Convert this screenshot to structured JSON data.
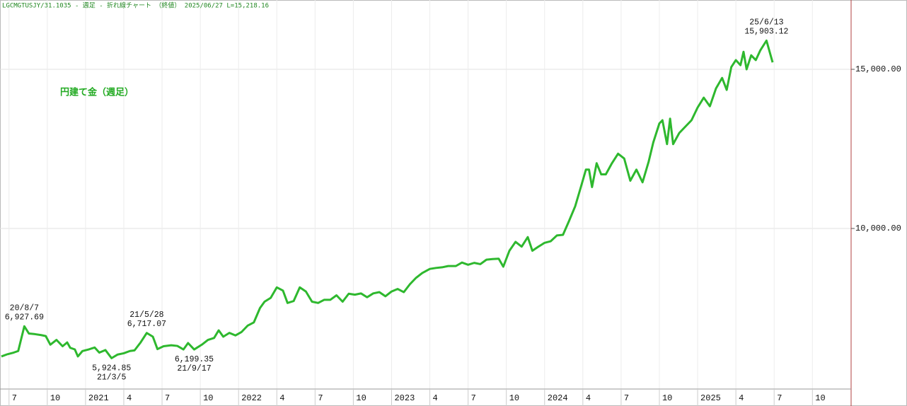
{
  "chart_data": {
    "type": "line",
    "title": "LGCMGTUSJY/31.1035 - 週足 - 折れ線チャート （終値） 2025/06/27 L=15,218.16",
    "xlim": [
      2020.441,
      2026.003
    ],
    "xticks": [
      {
        "value": 2020.5,
        "label": "7"
      },
      {
        "value": 2020.75,
        "label": "10"
      },
      2021,
      {
        "value": 2021.25,
        "label": "4"
      },
      {
        "value": 2021.5,
        "label": "7"
      },
      {
        "value": 2021.75,
        "label": "10"
      },
      2022,
      {
        "value": 2022.25,
        "label": "4"
      },
      {
        "value": 2022.5,
        "label": "7"
      },
      {
        "value": 2022.75,
        "label": "10"
      },
      2023,
      {
        "value": 2023.25,
        "label": "4"
      },
      {
        "value": 2023.5,
        "label": "7"
      },
      {
        "value": 2023.75,
        "label": "10"
      },
      2024,
      {
        "value": 2024.25,
        "label": "4"
      },
      {
        "value": 2024.5,
        "label": "7"
      },
      {
        "value": 2024.75,
        "label": "10"
      },
      2025,
      {
        "value": 2025.25,
        "label": "4"
      },
      {
        "value": 2025.5,
        "label": "7"
      },
      {
        "value": 2025.75,
        "label": "10"
      }
    ],
    "ylim": [
      4956,
      17178
    ],
    "yticks": [
      {
        "value": 10000,
        "label": "10,000.00"
      },
      {
        "value": 15000,
        "label": "15,000.00"
      }
    ],
    "grid": true,
    "x": [
      2020.45,
      2020.49,
      2020.53,
      2020.56,
      2020.6,
      2020.63,
      2020.67,
      2020.71,
      2020.74,
      2020.77,
      2020.81,
      2020.85,
      2020.88,
      2020.9,
      2020.93,
      2020.95,
      2020.98,
      2021.02,
      2021.06,
      2021.09,
      2021.13,
      2021.17,
      2021.21,
      2021.25,
      2021.29,
      2021.32,
      2021.36,
      2021.4,
      2021.44,
      2021.47,
      2021.51,
      2021.56,
      2021.6,
      2021.64,
      2021.67,
      2021.71,
      2021.76,
      2021.8,
      2021.84,
      2021.87,
      2021.9,
      2021.94,
      2021.98,
      2022.02,
      2022.06,
      2022.1,
      2022.14,
      2022.17,
      2022.21,
      2022.25,
      2022.29,
      2022.32,
      2022.36,
      2022.4,
      2022.44,
      2022.48,
      2022.52,
      2022.56,
      2022.6,
      2022.64,
      2022.68,
      2022.72,
      2022.76,
      2022.8,
      2022.84,
      2022.88,
      2022.92,
      2022.96,
      2023.0,
      2023.04,
      2023.08,
      2023.12,
      2023.16,
      2023.2,
      2023.25,
      2023.29,
      2023.33,
      2023.37,
      2023.42,
      2023.46,
      2023.5,
      2023.54,
      2023.58,
      2023.62,
      2023.66,
      2023.7,
      2023.73,
      2023.77,
      2023.81,
      2023.85,
      2023.89,
      2023.92,
      2023.96,
      2024.0,
      2024.04,
      2024.08,
      2024.12,
      2024.16,
      2024.2,
      2024.24,
      2024.27,
      2024.29,
      2024.31,
      2024.34,
      2024.37,
      2024.4,
      2024.44,
      2024.48,
      2024.52,
      2024.56,
      2024.6,
      2024.64,
      2024.68,
      2024.71,
      2024.75,
      2024.77,
      2024.8,
      2024.82,
      2024.84,
      2024.88,
      2024.92,
      2024.96,
      2025.0,
      2025.04,
      2025.08,
      2025.12,
      2025.16,
      2025.19,
      2025.22,
      2025.25,
      2025.28,
      2025.3,
      2025.32,
      2025.35,
      2025.38,
      2025.41,
      2025.45,
      2025.49
    ],
    "series": [
      {
        "name": "円建て金（週足）",
        "color": "#2eb82e",
        "values": [
          5980,
          6050,
          6100,
          6150,
          6927.69,
          6700,
          6680,
          6650,
          6620,
          6350,
          6500,
          6300,
          6420,
          6250,
          6200,
          5980,
          6150,
          6200,
          6260,
          6100,
          6180,
          5924.85,
          6040,
          6080,
          6150,
          6170,
          6420,
          6717.07,
          6600,
          6210,
          6300,
          6330,
          6310,
          6200,
          6400,
          6199.35,
          6350,
          6500,
          6560,
          6800,
          6600,
          6720,
          6640,
          6750,
          6950,
          7050,
          7500,
          7700,
          7820,
          8150,
          8050,
          7660,
          7720,
          8150,
          8020,
          7700,
          7660,
          7760,
          7760,
          7900,
          7700,
          7950,
          7920,
          7960,
          7840,
          7960,
          8000,
          7870,
          8020,
          8100,
          8000,
          8250,
          8450,
          8600,
          8730,
          8760,
          8780,
          8820,
          8820,
          8930,
          8860,
          8920,
          8880,
          9020,
          9040,
          9050,
          8800,
          9300,
          9580,
          9430,
          9730,
          9300,
          9430,
          9550,
          9600,
          9780,
          9800,
          10240,
          10700,
          11350,
          11850,
          11850,
          11300,
          12050,
          11700,
          11700,
          12050,
          12350,
          12200,
          11500,
          11850,
          11450,
          12100,
          12700,
          13300,
          13400,
          12650,
          13450,
          12650,
          13000,
          13200,
          13400,
          13800,
          14110,
          13840,
          14400,
          14730,
          14355,
          15070,
          15290,
          15130,
          15550,
          15000,
          15440,
          15290,
          15600,
          15903.12,
          15218.16
        ],
        "value_labels": [
          null,
          null,
          null,
          null,
          "6,927.69",
          null,
          null,
          null,
          null,
          null,
          null,
          null,
          null,
          null,
          null,
          null,
          null,
          null,
          null,
          null,
          null,
          "5,924.85",
          null,
          null,
          null,
          null,
          null,
          "6,717.07",
          null,
          null,
          null,
          null,
          null,
          null,
          null,
          "6,199.35",
          null,
          null,
          null,
          null,
          null,
          null,
          null,
          null,
          null,
          null,
          null,
          null,
          null,
          null,
          null,
          null,
          null,
          null,
          null,
          null,
          null,
          null,
          null,
          null,
          null,
          null,
          null,
          null,
          null,
          null,
          null,
          null,
          null,
          null,
          null,
          null,
          null,
          null,
          null,
          null,
          null,
          null,
          null,
          null,
          null,
          null,
          null,
          null,
          null,
          null,
          null,
          null,
          null,
          null,
          null,
          null,
          null,
          null,
          null,
          null,
          null,
          null,
          null,
          null,
          null,
          null,
          null,
          null,
          null,
          null,
          null,
          null,
          null,
          null,
          null,
          null,
          null,
          null,
          null,
          null,
          null,
          null,
          null,
          null,
          null,
          null,
          null,
          null,
          null,
          null,
          null,
          null,
          null,
          null,
          null,
          null,
          null,
          null,
          null,
          null,
          "15,903.12",
          null
        ],
        "date_labels": [
          null,
          null,
          null,
          null,
          "20/8/7",
          null,
          null,
          null,
          null,
          null,
          null,
          null,
          null,
          null,
          null,
          null,
          null,
          null,
          null,
          null,
          null,
          "21/3/5",
          null,
          null,
          null,
          null,
          null,
          "21/5/28",
          null,
          null,
          null,
          null,
          null,
          null,
          null,
          "21/9/17",
          null,
          null,
          null,
          null,
          null,
          null,
          null,
          null,
          null,
          null,
          null,
          null,
          null,
          null,
          null,
          null,
          null,
          null,
          null,
          null,
          null,
          null,
          null,
          null,
          null,
          null,
          null,
          null,
          null,
          null,
          null,
          null,
          null,
          null,
          null,
          null,
          null,
          null,
          null,
          null,
          null,
          null,
          null,
          null,
          null,
          null,
          null,
          null,
          null,
          null,
          null,
          null,
          null,
          null,
          null,
          null,
          null,
          null,
          null,
          null,
          null,
          null,
          null,
          null,
          null,
          null,
          null,
          null,
          null,
          null,
          null,
          null,
          null,
          null,
          null,
          null,
          null,
          null,
          null,
          null,
          null,
          null,
          null,
          null,
          null,
          null,
          null,
          null,
          null,
          null,
          null,
          null,
          null,
          null,
          null,
          null,
          null,
          null,
          null,
          null,
          "25/6/13",
          null
        ]
      }
    ]
  }
}
